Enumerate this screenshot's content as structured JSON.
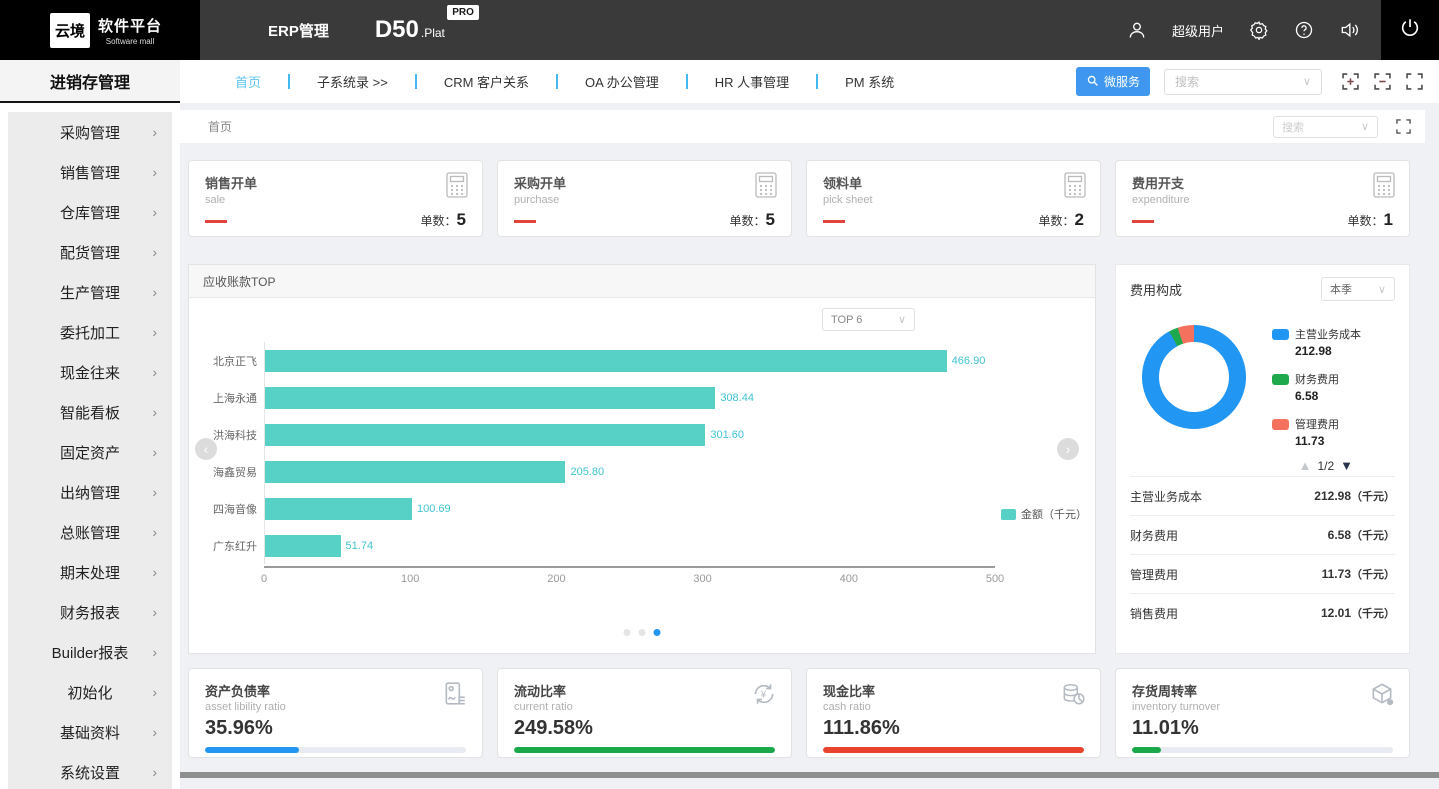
{
  "header": {
    "logo_primary": "云境",
    "logo_secondary": "软件平台",
    "logo_sub": "Software mall",
    "module": "ERP管理",
    "product": "D50",
    "product_suffix": ".Plat",
    "badge": "PRO",
    "user": "超级用户"
  },
  "nav": {
    "tabs": [
      "首页",
      "子系统录 >>",
      "CRM 客户关系",
      "OA 办公管理",
      "HR 人事管理",
      "PM 系统"
    ],
    "microservice_label": "微服务",
    "search_placeholder": "搜索"
  },
  "toolbar": {
    "tab": "首页",
    "search_placeholder": "搜索"
  },
  "sidebar": {
    "title": "进销存管理",
    "items": [
      "采购管理",
      "销售管理",
      "仓库管理",
      "配货管理",
      "生产管理",
      "委托加工",
      "现金往来",
      "智能看板",
      "固定资产",
      "出纳管理",
      "总账管理",
      "期末处理",
      "财务报表",
      "Builder报表",
      "初始化",
      "基础资料",
      "系统设置"
    ]
  },
  "stat_cards": [
    {
      "title": "销售开单",
      "subtitle": "sale",
      "count_label": "单数：",
      "count": "5"
    },
    {
      "title": "采购开单",
      "subtitle": "purchase",
      "count_label": "单数：",
      "count": "5"
    },
    {
      "title": "领料单",
      "subtitle": "pick sheet",
      "count_label": "单数：",
      "count": "2"
    },
    {
      "title": "费用开支",
      "subtitle": "expenditure",
      "count_label": "单数：",
      "count": "1"
    }
  ],
  "chart_data": [
    {
      "type": "bar",
      "orientation": "horizontal",
      "title": "应收账款TOP",
      "filter": "TOP 6",
      "categories": [
        "北京正飞",
        "上海永通",
        "洪海科技",
        "海鑫贸易",
        "四海音像",
        "广东红升"
      ],
      "values": [
        466.9,
        308.44,
        301.6,
        205.8,
        100.69,
        51.74
      ],
      "value_labels": [
        "466.90",
        "308.44",
        "301.60",
        "205.80",
        "100.69",
        "51.74"
      ],
      "xlim": [
        0,
        500
      ],
      "xticks": [
        0,
        100,
        200,
        300,
        400,
        500
      ],
      "legend": "金额（千元）",
      "bar_color": "#57d1c6",
      "pagination": {
        "dots": 3,
        "active": 2
      }
    },
    {
      "type": "pie",
      "title": "费用构成",
      "filter": "本季",
      "labels": [
        "主营业务成本",
        "财务费用",
        "管理费用"
      ],
      "values": [
        212.98,
        6.58,
        11.73
      ],
      "value_labels": [
        "212.98",
        "6.58",
        "11.73"
      ],
      "colors": [
        "#2196f3",
        "#1fa94d",
        "#f4715d"
      ],
      "pager": "1/2",
      "legend_position": "right"
    }
  ],
  "expense_table": {
    "unit": "（千元）",
    "rows": [
      {
        "label": "主营业务成本",
        "value": "212.98"
      },
      {
        "label": "财务费用",
        "value": "6.58"
      },
      {
        "label": "管理费用",
        "value": "11.73"
      },
      {
        "label": "销售费用",
        "value": "12.01"
      }
    ]
  },
  "ratio_cards": [
    {
      "title": "资产负债率",
      "subtitle": "asset libility ratio",
      "value": "35.96%",
      "percent": 35.96,
      "color": "#2196f3"
    },
    {
      "title": "流动比率",
      "subtitle": "current ratio",
      "value": "249.58%",
      "percent": 100,
      "color": "#19a94a"
    },
    {
      "title": "现金比率",
      "subtitle": "cash ratio",
      "value": "111.86%",
      "percent": 100,
      "color": "#e8432c"
    },
    {
      "title": "存货周转率",
      "subtitle": "inventory turnover",
      "value": "11.01%",
      "percent": 11.01,
      "color": "#19a94a"
    }
  ]
}
